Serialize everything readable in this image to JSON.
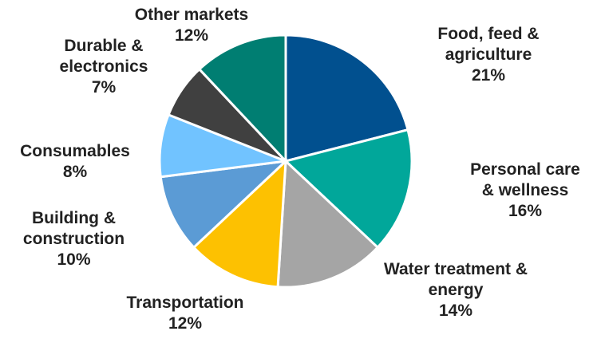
{
  "chart_data": {
    "type": "pie",
    "slices": [
      {
        "label_lines": [
          "Food, feed &",
          "agriculture"
        ],
        "pct_text": "21%",
        "value": 21,
        "color": "#01508f"
      },
      {
        "label_lines": [
          "Personal care",
          "& wellness"
        ],
        "pct_text": "16%",
        "value": 16,
        "color": "#01a79a"
      },
      {
        "label_lines": [
          "Water treatment &",
          "energy"
        ],
        "pct_text": "14%",
        "value": 14,
        "color": "#a5a5a5"
      },
      {
        "label_lines": [
          "Transportation"
        ],
        "pct_text": "12%",
        "value": 12,
        "color": "#fdc101"
      },
      {
        "label_lines": [
          "Building &",
          "construction"
        ],
        "pct_text": "10%",
        "value": 10,
        "color": "#5b9bd5"
      },
      {
        "label_lines": [
          "Consumables"
        ],
        "pct_text": "8%",
        "value": 8,
        "color": "#71c3ff"
      },
      {
        "label_lines": [
          "Durable &",
          "electronics"
        ],
        "pct_text": "7%",
        "value": 7,
        "color": "#404040"
      },
      {
        "label_lines": [
          "Other markets"
        ],
        "pct_text": "12%",
        "value": 12,
        "color": "#007e72"
      }
    ],
    "start_angle": "12 o'clock",
    "direction": "clockwise",
    "legend": "none"
  }
}
